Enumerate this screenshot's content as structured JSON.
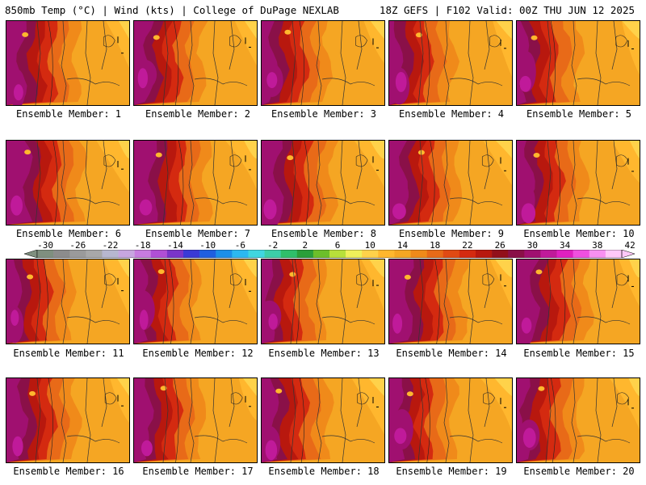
{
  "header": {
    "left_title": "850mb Temp (°C) | Wind (kts) | College of DuPage NEXLAB",
    "right_title": "18Z GEFS | F102 Valid: 00Z THU JUN 12 2025"
  },
  "panels": [
    {
      "label": "Ensemble Member: 1"
    },
    {
      "label": "Ensemble Member: 2"
    },
    {
      "label": "Ensemble Member: 3"
    },
    {
      "label": "Ensemble Member: 4"
    },
    {
      "label": "Ensemble Member: 5"
    },
    {
      "label": "Ensemble Member: 6"
    },
    {
      "label": "Ensemble Member: 7"
    },
    {
      "label": "Ensemble Member: 8"
    },
    {
      "label": "Ensemble Member: 9"
    },
    {
      "label": "Ensemble Member: 10"
    },
    {
      "label": "Ensemble Member: 11"
    },
    {
      "label": "Ensemble Member: 12"
    },
    {
      "label": "Ensemble Member: 13"
    },
    {
      "label": "Ensemble Member: 14"
    },
    {
      "label": "Ensemble Member: 15"
    },
    {
      "label": "Ensemble Member: 16"
    },
    {
      "label": "Ensemble Member: 17"
    },
    {
      "label": "Ensemble Member: 18"
    },
    {
      "label": "Ensemble Member: 19"
    },
    {
      "label": "Ensemble Member: 20"
    }
  ],
  "colorbar": {
    "labels": [
      "-30",
      "-26",
      "-22",
      "-18",
      "-14",
      "-10",
      "-6",
      "-2",
      "2",
      "6",
      "10",
      "14",
      "18",
      "22",
      "26",
      "30",
      "34",
      "38",
      "42"
    ],
    "colors": [
      "#7f8f7f",
      "#8c8c8c",
      "#9a9a9a",
      "#a8a8a8",
      "#b7b7cf",
      "#c7a6e0",
      "#c77be0",
      "#b04fd6",
      "#7a35c9",
      "#3a3ad6",
      "#1f5fe0",
      "#1c8fe8",
      "#2cb8f0",
      "#40d6e0",
      "#3ccfa8",
      "#2fbf6a",
      "#2a9f3a",
      "#6cbf2a",
      "#b8e03a",
      "#f0f05a",
      "#ffd24a",
      "#ffb72e",
      "#f5a623",
      "#f08a1a",
      "#e86a18",
      "#e04a14",
      "#d42a10",
      "#b8180e",
      "#92101a",
      "#8a1048",
      "#a01070",
      "#c01a9a",
      "#e020c0",
      "#f050e0",
      "#f890f0",
      "#ffc8f8"
    ]
  }
}
